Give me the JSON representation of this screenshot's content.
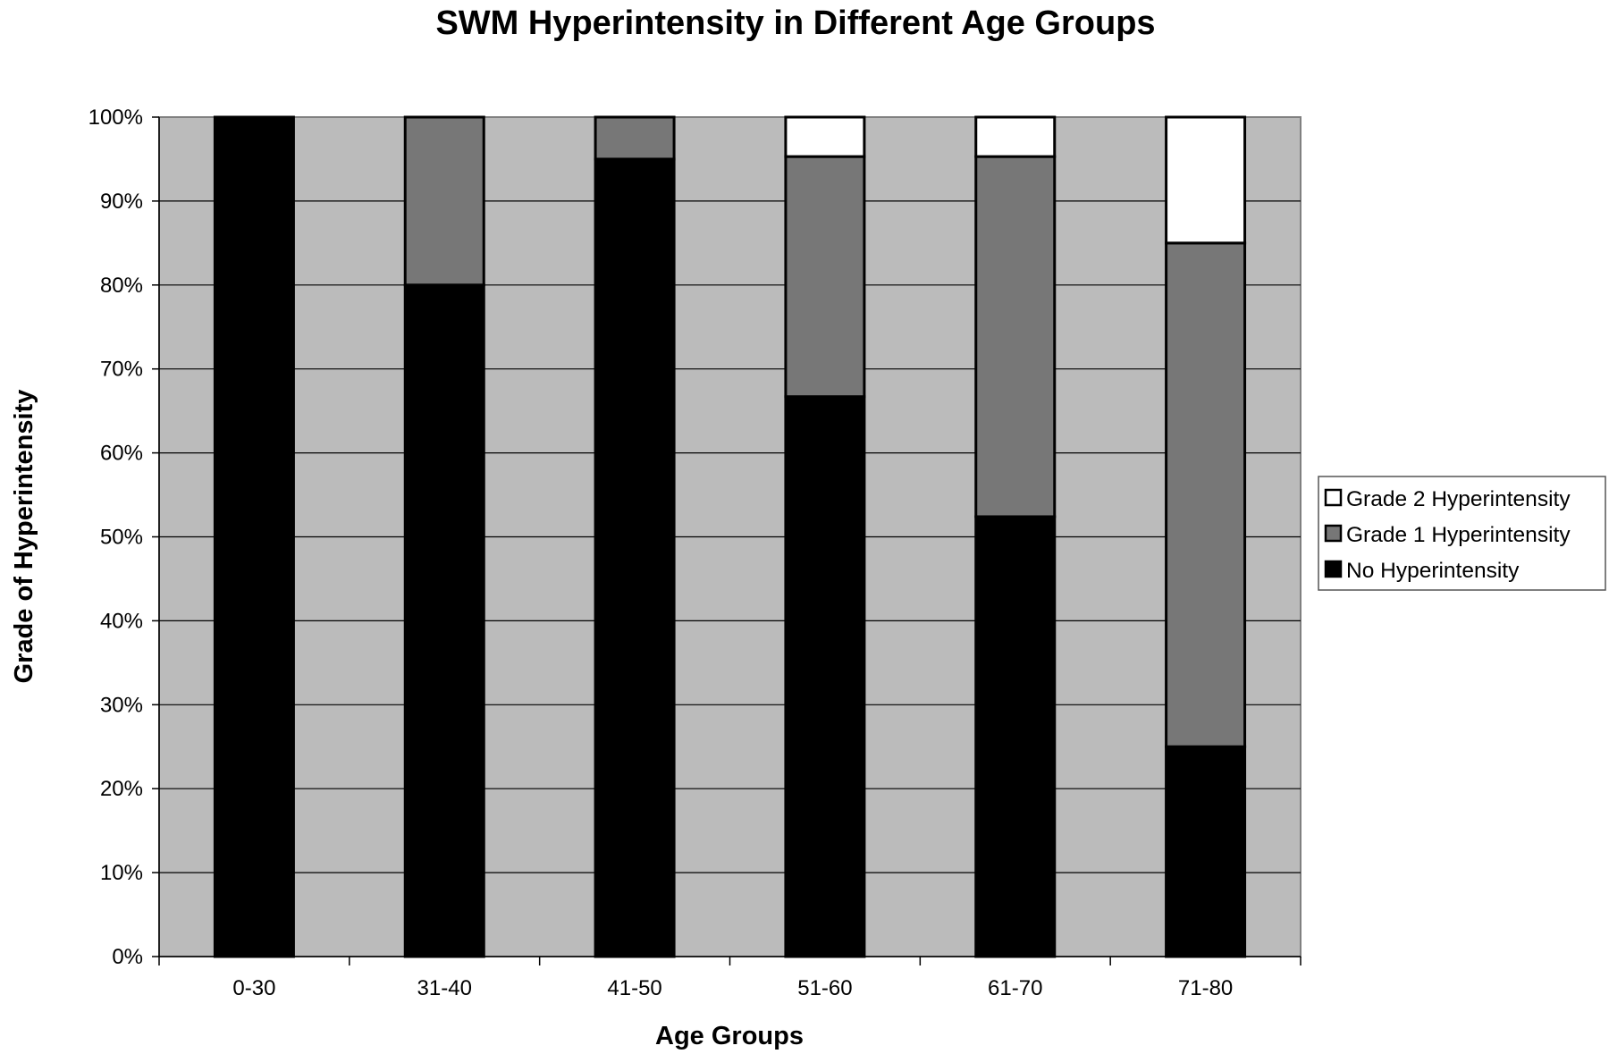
{
  "chart_data": {
    "type": "bar",
    "stacked": true,
    "title": "SWM Hyperintensity in Different Age Groups",
    "xlabel": "Age Groups",
    "ylabel": "Grade of Hyperintensity",
    "ylim": [
      0,
      100
    ],
    "yticks": [
      0,
      10,
      20,
      30,
      40,
      50,
      60,
      70,
      80,
      90,
      100
    ],
    "ytick_labels": [
      "0%",
      "10%",
      "20%",
      "30%",
      "40%",
      "50%",
      "60%",
      "70%",
      "80%",
      "90%",
      "100%"
    ],
    "categories": [
      "0-30",
      "31-40",
      "41-50",
      "51-60",
      "61-70",
      "71-80"
    ],
    "series": [
      {
        "name": "No Hyperintensity",
        "color": "#000000",
        "values": [
          100,
          80,
          95,
          66.7,
          52.4,
          25
        ]
      },
      {
        "name": "Grade 1 Hyperintensity",
        "color": "#777777",
        "values": [
          0,
          20,
          5,
          28.6,
          42.9,
          60
        ]
      },
      {
        "name": "Grade 2 Hyperintensity",
        "color": "#ffffff",
        "values": [
          0,
          0,
          0,
          4.7,
          4.7,
          15
        ]
      }
    ],
    "legend_order": [
      "Grade 2 Hyperintensity",
      "Grade 1 Hyperintensity",
      "No Hyperintensity"
    ],
    "plot_background": "#bbbbbb",
    "grid": true,
    "legend_position": "right"
  }
}
